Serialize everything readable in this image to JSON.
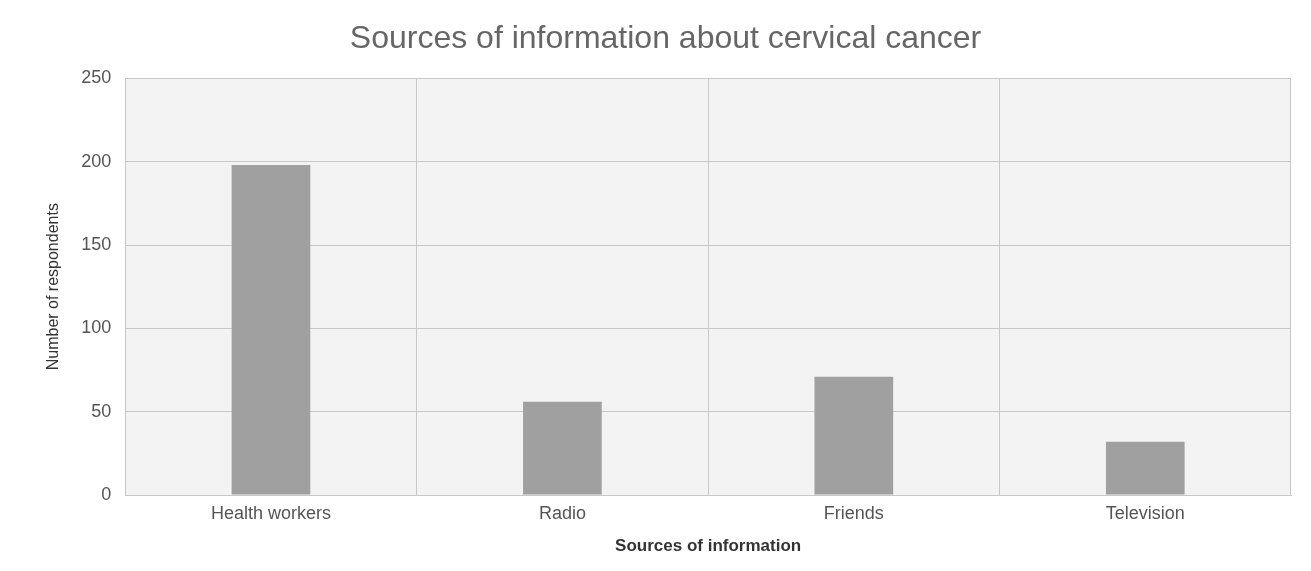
{
  "chart_data": {
    "type": "bar",
    "title": "Sources of information about cervical cancer",
    "xlabel": "Sources of information",
    "ylabel": "Number of respondents",
    "categories": [
      "Health workers",
      "Radio",
      "Friends",
      "Television"
    ],
    "values": [
      198,
      56,
      71,
      32
    ],
    "color": "#a0a0a0",
    "ylim": [
      0,
      250
    ],
    "yticks": [
      0,
      50,
      100,
      150,
      200,
      250
    ],
    "grid": true
  }
}
